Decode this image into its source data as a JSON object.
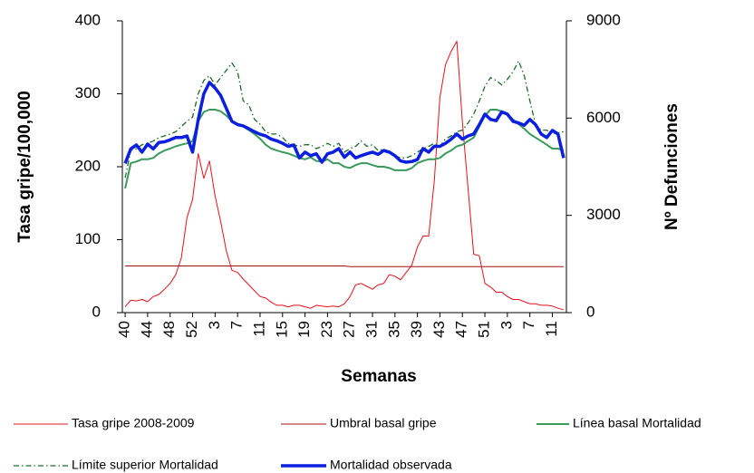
{
  "chart_data": {
    "type": "line",
    "x_label": "Semanas",
    "y_label": "Tasa gripe/100,000",
    "y2_label": "Nº Defunciones",
    "categories": [
      "40",
      null,
      null,
      null,
      "44",
      null,
      null,
      null,
      "48",
      null,
      null,
      null,
      "52",
      null,
      null,
      null,
      "3",
      null,
      null,
      null,
      "7",
      null,
      null,
      null,
      "11",
      null,
      null,
      null,
      "15",
      null,
      null,
      null,
      "19",
      null,
      null,
      null,
      "23",
      null,
      null,
      null,
      "27",
      null,
      null,
      null,
      "31",
      null,
      null,
      null,
      "35",
      null,
      null,
      null,
      "39",
      null,
      null,
      null,
      "43",
      null,
      null,
      null,
      "47",
      null,
      null,
      null,
      "51",
      null,
      null,
      null,
      "3",
      null,
      null,
      null,
      "7",
      null,
      null,
      null,
      "11",
      null,
      null
    ],
    "ylim": [
      0,
      400
    ],
    "yticks": [
      0,
      100,
      200,
      300,
      400
    ],
    "y2lim": [
      0,
      9000
    ],
    "y2ticks": [
      0,
      3000,
      6000,
      9000
    ],
    "series": [
      {
        "name": "Tasa gripe 2008-2009",
        "color": "#e8101a",
        "width": 1,
        "dash": "none",
        "axis": "y",
        "values": [
          8,
          17,
          16,
          18,
          15,
          22,
          25,
          32,
          40,
          52,
          75,
          130,
          155,
          218,
          184,
          208,
          160,
          125,
          85,
          58,
          55,
          46,
          38,
          30,
          22,
          20,
          14,
          10,
          10,
          8,
          10,
          10,
          8,
          6,
          10,
          9,
          8,
          9,
          8,
          12,
          22,
          38,
          40,
          36,
          32,
          38,
          40,
          52,
          50,
          45,
          55,
          65,
          90,
          105,
          105,
          180,
          295,
          340,
          358,
          372,
          260,
          170,
          80,
          78,
          40,
          35,
          28,
          28,
          22,
          18,
          18,
          15,
          12,
          12,
          10,
          10,
          9,
          6,
          4
        ]
      },
      {
        "name": "Umbral basal gripe",
        "color": "#a01010",
        "width": 1,
        "dash": "none",
        "axis": "y",
        "values": [
          64,
          64,
          64,
          64,
          64,
          64,
          64,
          64,
          64,
          64,
          64,
          64,
          64,
          64,
          64,
          64,
          64,
          64,
          64,
          64,
          64,
          64,
          64,
          64,
          64,
          64,
          64,
          64,
          64,
          64,
          64,
          64,
          64,
          64,
          64,
          64,
          64,
          64,
          64,
          64,
          63,
          63,
          63,
          63,
          63,
          63,
          63,
          63,
          63,
          63,
          63,
          63,
          63,
          63,
          63,
          63,
          63,
          63,
          63,
          63,
          63,
          63,
          63,
          63,
          63,
          63,
          63,
          63,
          63,
          63,
          63,
          63,
          63,
          63,
          63,
          63,
          63,
          63,
          63
        ]
      },
      {
        "name": "Línea basal Mortalidad",
        "color": "#3a9a5c",
        "width": 2,
        "dash": "none",
        "axis": "y2",
        "values": [
          3830,
          4610,
          4660,
          4730,
          4730,
          4770,
          4910,
          5000,
          5060,
          5130,
          5180,
          5220,
          5290,
          5900,
          6190,
          6260,
          6260,
          6210,
          6080,
          5900,
          5810,
          5740,
          5630,
          5510,
          5360,
          5180,
          5060,
          5000,
          4950,
          4910,
          4840,
          4770,
          4730,
          4790,
          4680,
          4660,
          4730,
          4610,
          4610,
          4500,
          4460,
          4550,
          4610,
          4610,
          4550,
          4500,
          4500,
          4460,
          4390,
          4390,
          4390,
          4460,
          4610,
          4680,
          4730,
          4730,
          4770,
          4910,
          5000,
          5130,
          5180,
          5290,
          5400,
          5740,
          6080,
          6260,
          6260,
          6210,
          6120,
          5960,
          5810,
          5670,
          5510,
          5400,
          5290,
          5180,
          5060,
          5060,
          5000
        ]
      },
      {
        "name": "Límite superior Mortalidad",
        "color": "#1e6b2a",
        "width": 1.3,
        "dash": "6 3 1.5 3",
        "axis": "y2",
        "values": [
          4160,
          5000,
          5060,
          5180,
          5220,
          5290,
          5400,
          5450,
          5510,
          5580,
          5740,
          5900,
          6030,
          6750,
          7160,
          7310,
          7020,
          7250,
          7470,
          7700,
          7430,
          6530,
          6410,
          5960,
          5810,
          5580,
          5510,
          5510,
          5400,
          5220,
          5180,
          5130,
          5180,
          5180,
          5060,
          5130,
          5220,
          5130,
          5220,
          4950,
          5060,
          5130,
          5290,
          5130,
          5180,
          5000,
          5040,
          4950,
          4840,
          4770,
          4770,
          4840,
          4950,
          5060,
          5130,
          5220,
          5130,
          5360,
          5450,
          5580,
          5630,
          5850,
          6120,
          6530,
          6980,
          7250,
          7160,
          7020,
          7200,
          7430,
          7760,
          7310,
          6530,
          5810,
          5630,
          5630,
          5510,
          5540,
          5580
        ]
      },
      {
        "name": "Mortalidad observada",
        "color": "#0a1fe0",
        "width": 3.5,
        "dash": "none",
        "axis": "y2",
        "values": [
          4600,
          5050,
          5170,
          4950,
          5200,
          5050,
          5250,
          5270,
          5330,
          5400,
          5400,
          5450,
          4950,
          5950,
          6750,
          7100,
          6930,
          6700,
          6300,
          5900,
          5800,
          5760,
          5670,
          5580,
          5500,
          5450,
          5350,
          5300,
          5220,
          5130,
          5170,
          4770,
          4950,
          4840,
          4900,
          4640,
          4900,
          4950,
          5060,
          4790,
          4950,
          4770,
          4840,
          4900,
          4950,
          4880,
          5000,
          4950,
          4840,
          4680,
          4640,
          4660,
          4720,
          5060,
          4950,
          5130,
          5130,
          5220,
          5350,
          5510,
          5350,
          5450,
          5510,
          5800,
          6120,
          5960,
          5920,
          6190,
          6120,
          5900,
          5850,
          5780,
          5960,
          5800,
          5510,
          5400,
          5620,
          5510,
          4770
        ]
      }
    ]
  }
}
